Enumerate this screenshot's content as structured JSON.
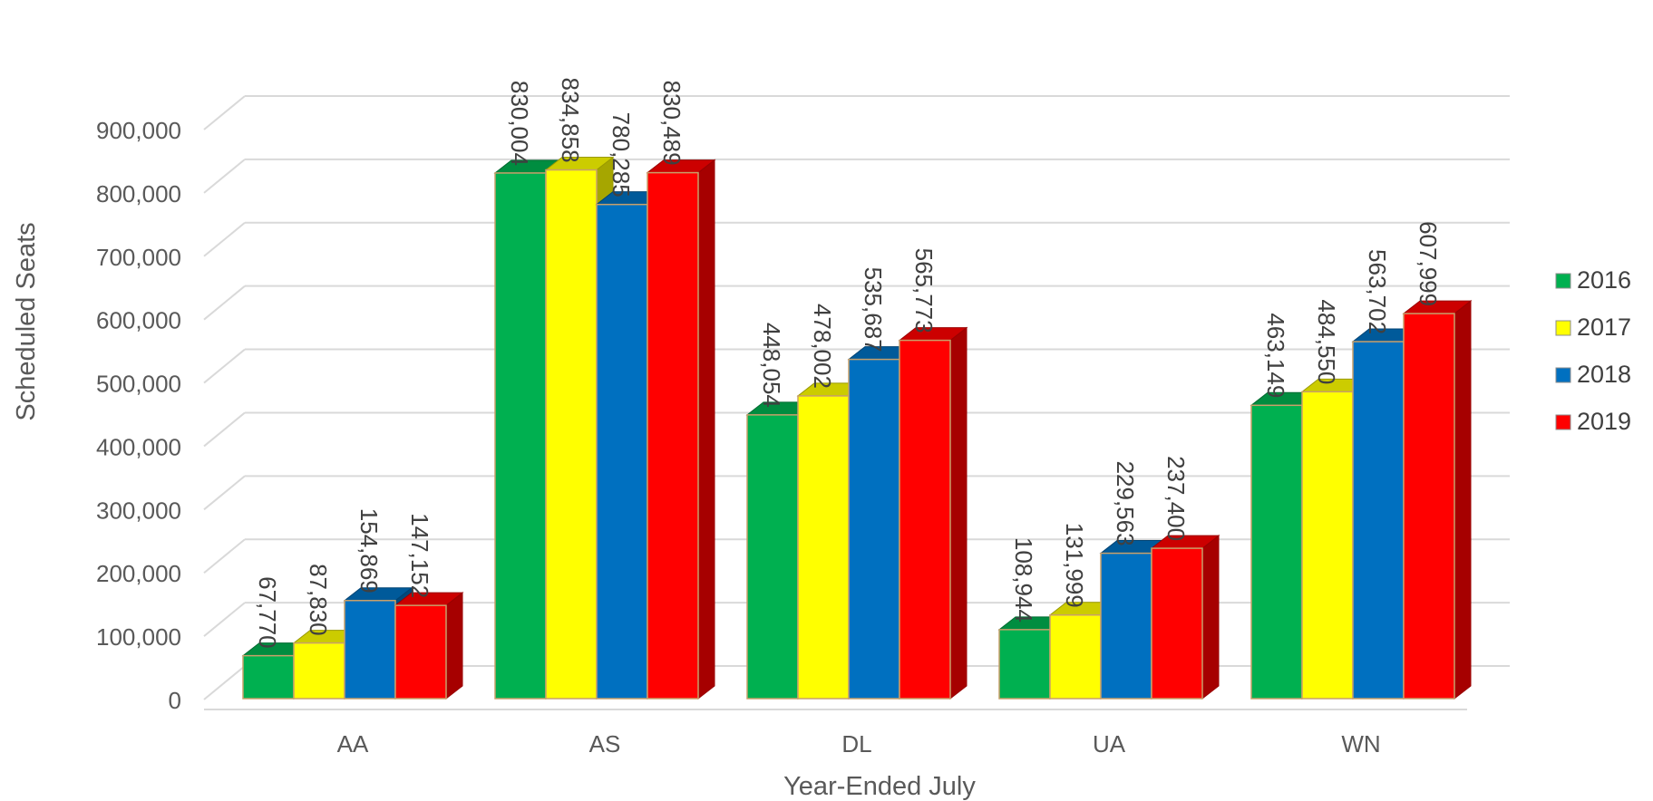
{
  "chart_data": {
    "type": "bar",
    "style": "3d-clustered-column",
    "title": "",
    "xlabel": "Year-Ended July",
    "ylabel": "Scheduled Seats",
    "categories": [
      "AA",
      "AS",
      "DL",
      "UA",
      "WN"
    ],
    "series": [
      {
        "name": "2016",
        "color": "#00b050",
        "values": [
          67770,
          830004,
          448054,
          108944,
          463149
        ]
      },
      {
        "name": "2017",
        "color": "#ffff00",
        "values": [
          87830,
          834858,
          478002,
          131999,
          484550
        ]
      },
      {
        "name": "2018",
        "color": "#0070c0",
        "values": [
          154869,
          780285,
          535687,
          229563,
          563702
        ]
      },
      {
        "name": "2019",
        "color": "#ff0000",
        "values": [
          147152,
          830489,
          565773,
          237400,
          607999
        ]
      }
    ],
    "data_labels": [
      [
        "67,770",
        "830,004",
        "448,054",
        "108,944",
        "463,149"
      ],
      [
        "87,830",
        "834,858",
        "478,002",
        "131,999",
        "484,550"
      ],
      [
        "154,869",
        "780,285",
        "535,687",
        "229,563",
        "563,702"
      ],
      [
        "147,152",
        "830,489",
        "565,773",
        "237,400",
        "607,999"
      ]
    ],
    "ylim": [
      0,
      900000
    ],
    "yticks": [
      0,
      100000,
      200000,
      300000,
      400000,
      500000,
      600000,
      700000,
      800000,
      900000
    ],
    "ytick_labels": [
      "0",
      "100,000",
      "200,000",
      "300,000",
      "400,000",
      "500,000",
      "600,000",
      "700,000",
      "800,000",
      "900,000"
    ],
    "grid": true,
    "legend_position": "right"
  }
}
